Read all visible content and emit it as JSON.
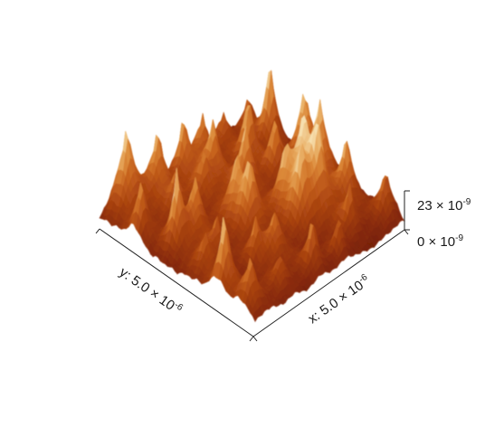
{
  "surface": {
    "colormap": [
      "#6a1a05",
      "#8a2c0a",
      "#a94310",
      "#c6621e",
      "#dc8a3a",
      "#eab26a",
      "#f6dfae"
    ],
    "background": "#ffffff"
  },
  "axes": {
    "x": {
      "prefix": "x: 5.0 × 10",
      "exp": "-6"
    },
    "y": {
      "prefix": "y: 5.0 × 10",
      "exp": "-6"
    },
    "z": {
      "max": {
        "prefix": "23 × 10",
        "exp": "-9"
      },
      "min": {
        "prefix": "0 × 10",
        "exp": "-9"
      }
    }
  }
}
